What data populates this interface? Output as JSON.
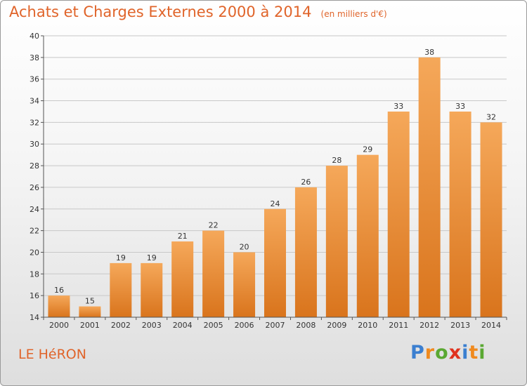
{
  "title": "Achats et Charges Externes 2000 à 2014",
  "subtitle": "(en milliers d'€)",
  "place": "LE HéRON",
  "logo": {
    "text": "Proxiti",
    "letters": [
      {
        "ch": "P",
        "color": "#3b7fd0"
      },
      {
        "ch": "r",
        "color": "#f08a1e"
      },
      {
        "ch": "o",
        "color": "#5aa832"
      },
      {
        "ch": "x",
        "color": "#e0321e"
      },
      {
        "ch": "i",
        "color": "#3b7fd0"
      },
      {
        "ch": "t",
        "color": "#f08a1e"
      },
      {
        "ch": "i",
        "color": "#5aa832"
      }
    ]
  },
  "colors": {
    "bar_top": "#f5a85a",
    "bar_bottom": "#d9741c",
    "accent": "#e0642a",
    "grid": "#c8c8c8",
    "axis": "#555555"
  },
  "chart_data": {
    "type": "bar",
    "categories": [
      "2000",
      "2001",
      "2002",
      "2003",
      "2004",
      "2005",
      "2006",
      "2007",
      "2008",
      "2009",
      "2010",
      "2011",
      "2012",
      "2013",
      "2014"
    ],
    "values": [
      16,
      15,
      19,
      19,
      21,
      22,
      20,
      24,
      26,
      28,
      29,
      33,
      38,
      33,
      32
    ],
    "ylim": [
      14,
      40
    ],
    "yticks": [
      14,
      16,
      18,
      20,
      22,
      24,
      26,
      28,
      30,
      32,
      34,
      36,
      38,
      40
    ],
    "grid": true,
    "xlabel": "",
    "ylabel": ""
  }
}
